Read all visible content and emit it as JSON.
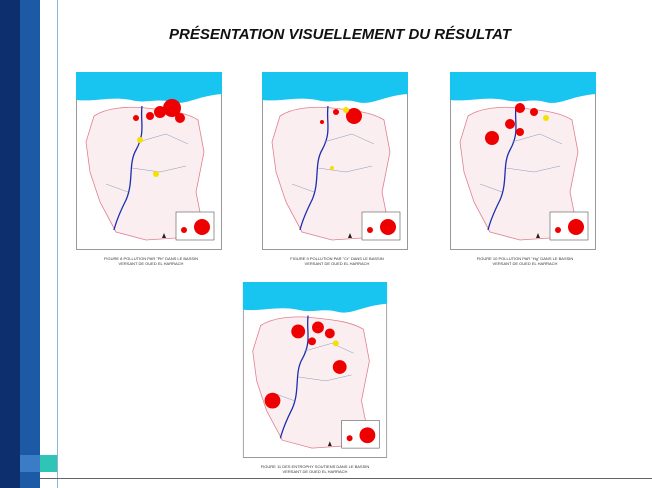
{
  "title": "PRÉSENTATION VISUELLEMENT DU RÉSULTAT",
  "figures": [
    {
      "caption": [
        "FIGURE 8 POLLUTION PAR \"Pb\" DANS LE BASSIN",
        "VERSANT DE OUED EL HARRACH"
      ]
    },
    {
      "caption": [
        "FIGURE 9 POLLUTION PAR \"Cr\" DANS LE BASSIN",
        "VERSANT DE OUED EL HARRACH"
      ]
    },
    {
      "caption": [
        "FIGURE 10 POLLUTION PAR \"Hg\" DANS LE BASSIN",
        "VERSANT DE OUED EL HARRACH"
      ]
    },
    {
      "caption": [
        "FIGURE 11 DES ENTROPHY SOUTIENS DANS LE BASSIN",
        "VERSANT DE OUED EL HARRACH"
      ]
    }
  ]
}
